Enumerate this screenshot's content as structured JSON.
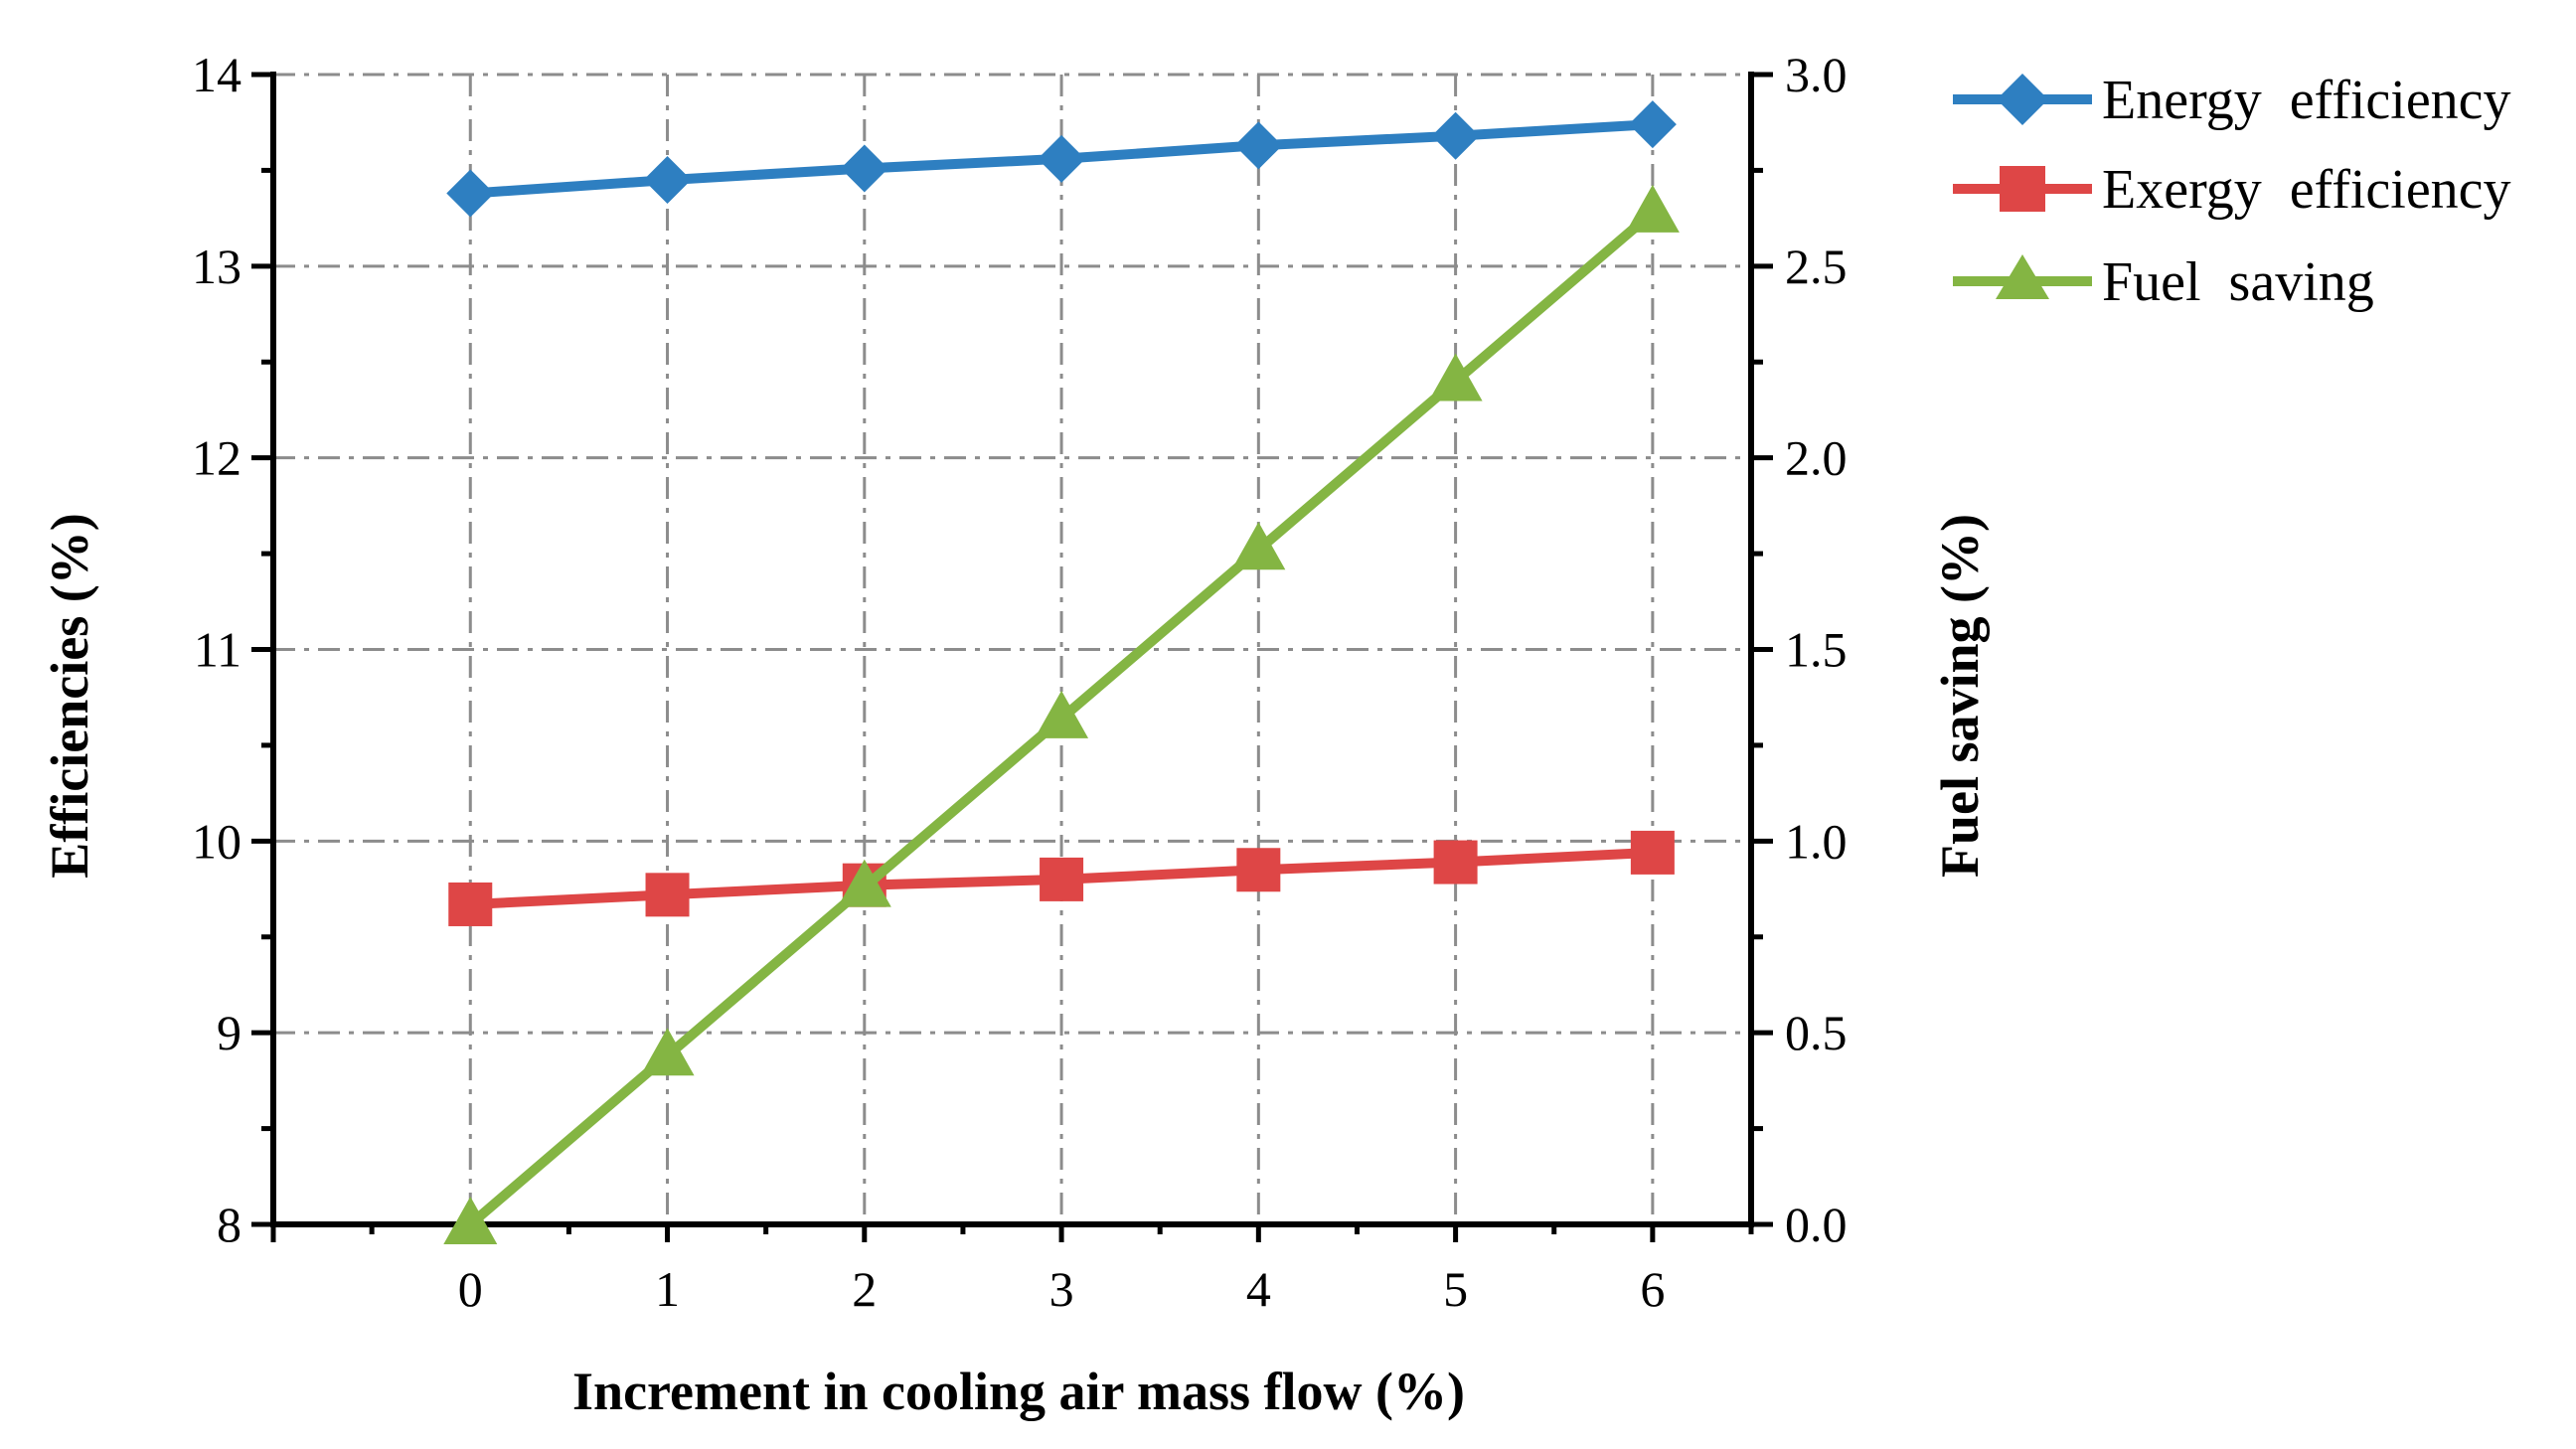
{
  "chart_data": {
    "type": "line",
    "title": "",
    "x": [
      0,
      1,
      2,
      3,
      4,
      5,
      6
    ],
    "x_tick_labels": [
      "0",
      "1",
      "2",
      "3",
      "4",
      "5",
      "6"
    ],
    "xlabel": "Increment in cooling air mass flow (%)",
    "xlim": [
      -1,
      6.5
    ],
    "ylabel_left": "Efficiencies (%)",
    "ylim_left": [
      8,
      14
    ],
    "y_left_tick_labels": [
      "8",
      "9",
      "10",
      "11",
      "12",
      "13",
      "14"
    ],
    "ylabel_right": "Fuel saving (%)",
    "ylim_right": [
      0,
      3
    ],
    "y_right_tick_labels": [
      "0.0",
      "0.5",
      "1.0",
      "1.5",
      "2.0",
      "2.5",
      "3.0"
    ],
    "grid": true,
    "legend_position": "top-right outside",
    "series": [
      {
        "name": "Energy efficiency",
        "axis": "left",
        "marker": "diamond",
        "color": "#2e7fc1",
        "values": [
          13.38,
          13.45,
          13.51,
          13.56,
          13.63,
          13.68,
          13.74
        ]
      },
      {
        "name": "Exergy efficiency",
        "axis": "left",
        "marker": "square",
        "color": "#de4646",
        "values": [
          9.67,
          9.72,
          9.77,
          9.8,
          9.85,
          9.89,
          9.94
        ]
      },
      {
        "name": "Fuel saving",
        "axis": "right",
        "marker": "triangle",
        "color": "#84b543",
        "values": [
          0.0,
          0.44,
          0.88,
          1.32,
          1.76,
          2.2,
          2.64
        ]
      }
    ]
  }
}
